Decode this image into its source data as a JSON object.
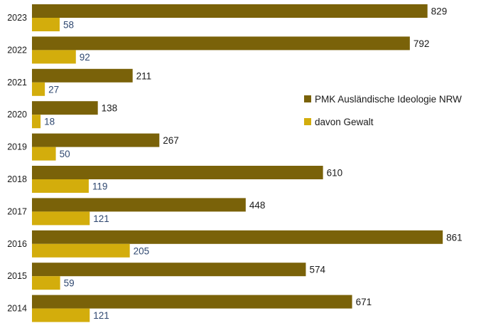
{
  "chart_data": {
    "type": "bar",
    "orientation": "horizontal",
    "title": "",
    "xlabel": "",
    "ylabel": "",
    "categories": [
      "2023",
      "2022",
      "2021",
      "2020",
      "2019",
      "2018",
      "2017",
      "2016",
      "2015",
      "2014"
    ],
    "series": [
      {
        "name": "PMK Ausländische Ideologie NRW",
        "color": "#7a6209",
        "label_color": "#1a1a1a",
        "values": [
          829,
          792,
          211,
          138,
          267,
          610,
          448,
          861,
          574,
          671
        ]
      },
      {
        "name": "davon Gewalt",
        "color": "#d3ad0c",
        "label_color": "#2f4870",
        "values": [
          58,
          92,
          27,
          18,
          50,
          119,
          121,
          205,
          59,
          121
        ]
      }
    ],
    "xlim": [
      0,
      870
    ],
    "grid": false,
    "axis_ticks_shown": false,
    "legend_position": "right, between the 2021 and 2020 rows"
  }
}
